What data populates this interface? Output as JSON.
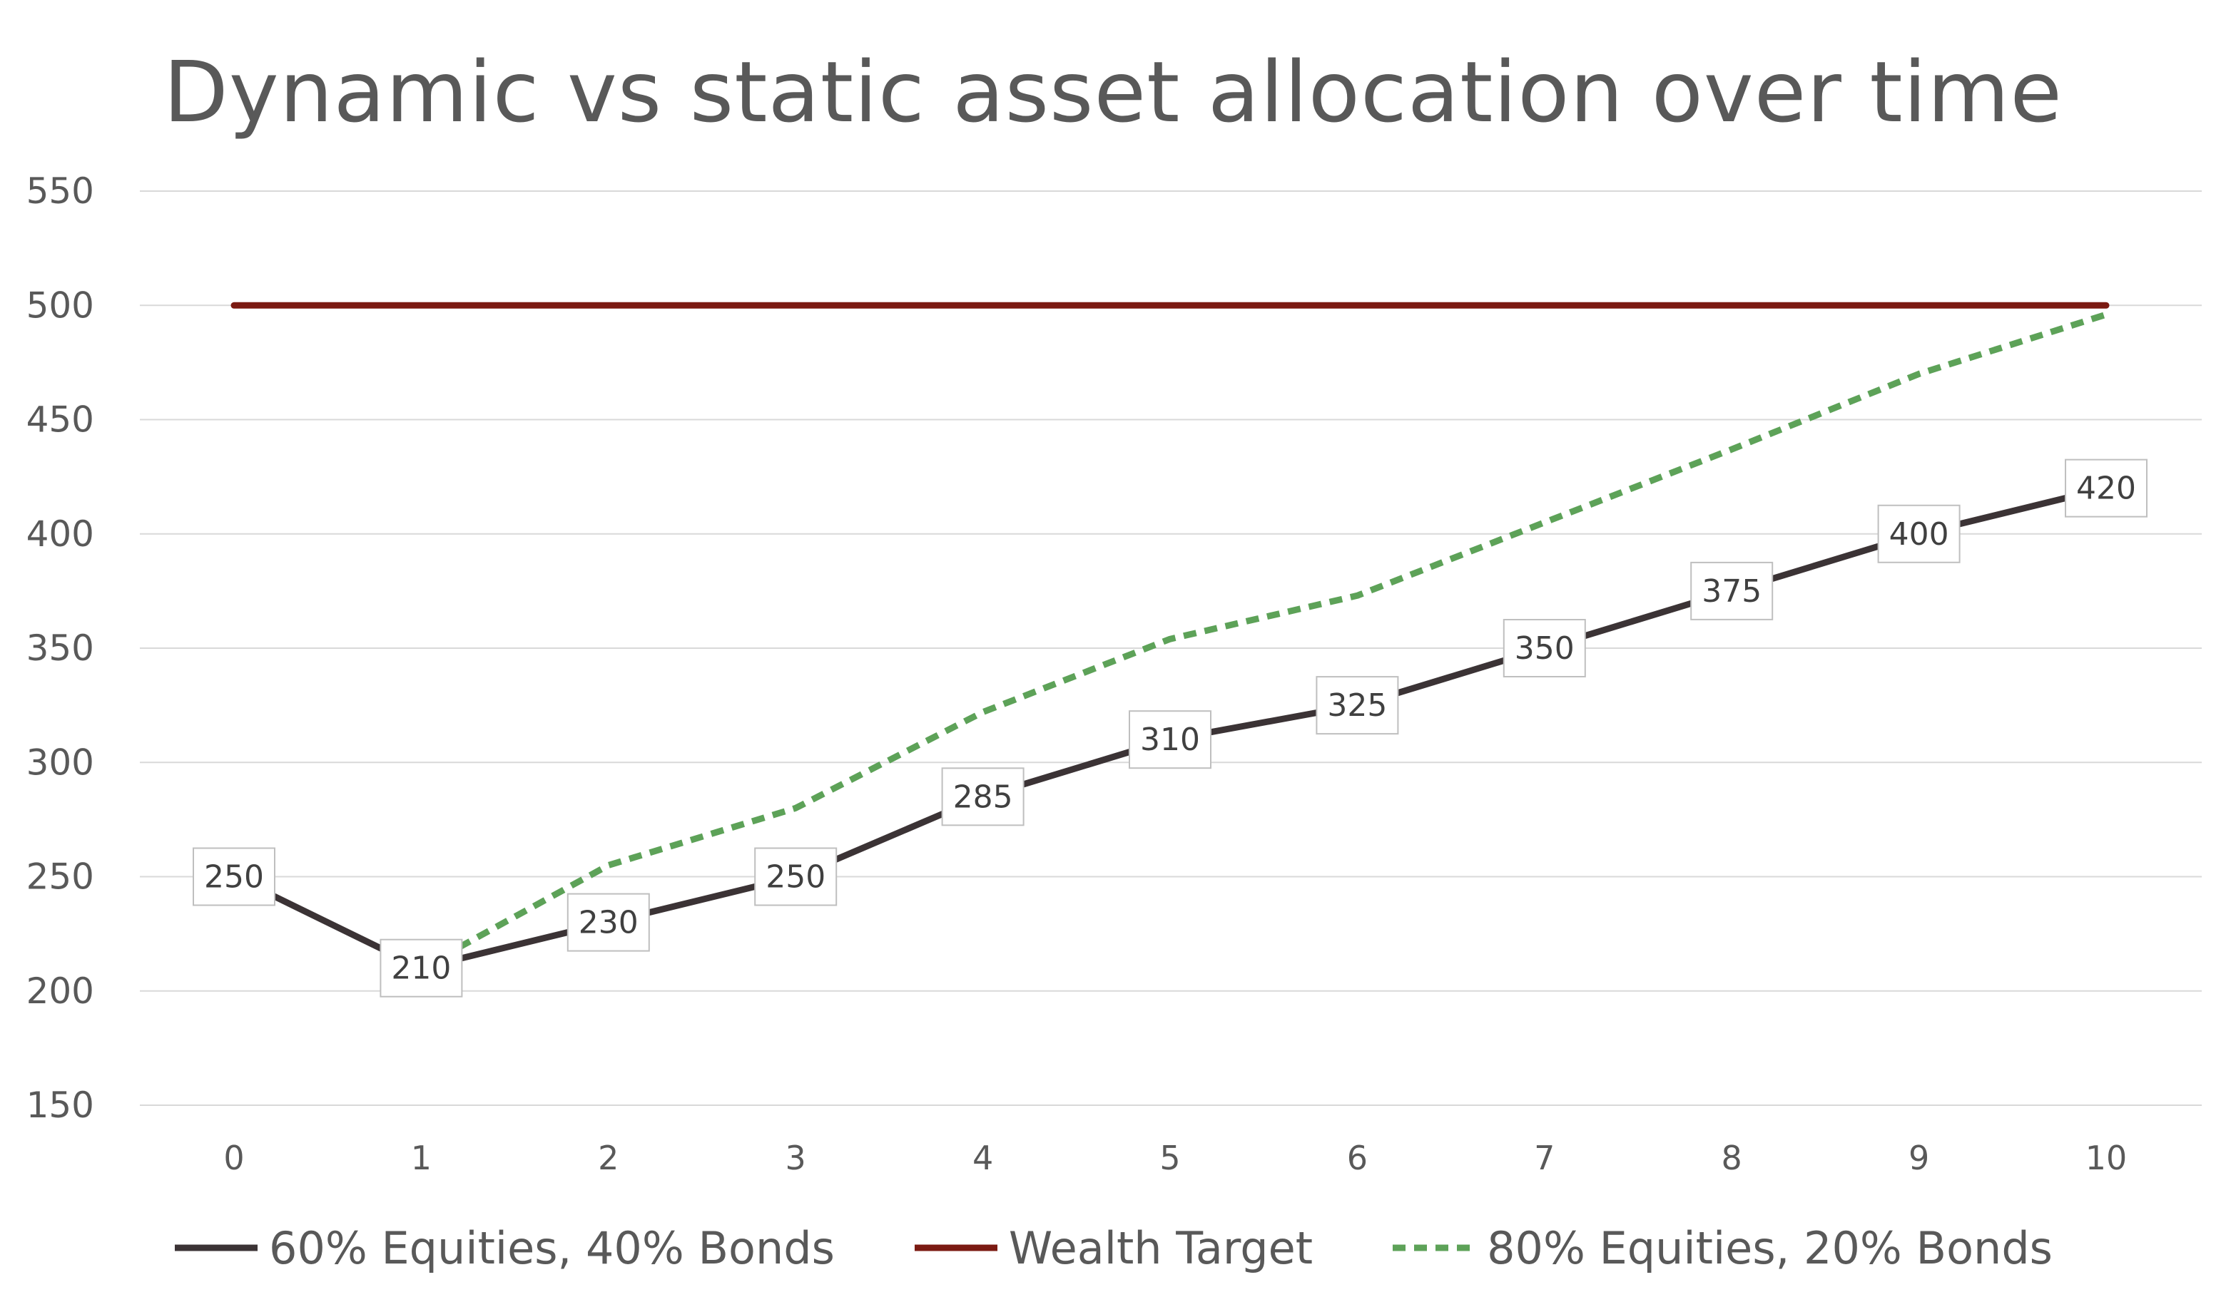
{
  "chart_data": {
    "type": "line",
    "title": "Dynamic vs static asset allocation over time",
    "xlabel": "",
    "ylabel": "",
    "x": [
      0,
      1,
      2,
      3,
      4,
      5,
      6,
      7,
      8,
      9,
      10
    ],
    "ylim": [
      150,
      550
    ],
    "yticks": [
      150,
      200,
      250,
      300,
      350,
      400,
      450,
      500,
      550
    ],
    "grid": "horizontal",
    "legend_position": "bottom",
    "series": [
      {
        "name": "60% Equities, 40% Bonds",
        "color": "#3b3335",
        "style": "solid",
        "data_labels": true,
        "x": [
          0,
          1,
          2,
          3,
          4,
          5,
          6,
          7,
          8,
          9,
          10
        ],
        "values": [
          250,
          210,
          230,
          250,
          285,
          310,
          325,
          350,
          375,
          400,
          420
        ]
      },
      {
        "name": "Wealth Target",
        "color": "#7b1a12",
        "style": "solid",
        "data_labels": false,
        "x": [
          0,
          1,
          2,
          3,
          4,
          5,
          6,
          7,
          8,
          9,
          10
        ],
        "values": [
          500,
          500,
          500,
          500,
          500,
          500,
          500,
          500,
          500,
          500,
          500
        ]
      },
      {
        "name": "80% Equities, 20% Bonds",
        "color": "#5da258",
        "style": "dashed",
        "data_labels": false,
        "x": [
          1,
          2,
          3,
          4,
          5,
          6,
          7,
          8,
          9,
          10
        ],
        "values": [
          210,
          255,
          280,
          322,
          354,
          373,
          405,
          437,
          470,
          496
        ]
      }
    ]
  }
}
